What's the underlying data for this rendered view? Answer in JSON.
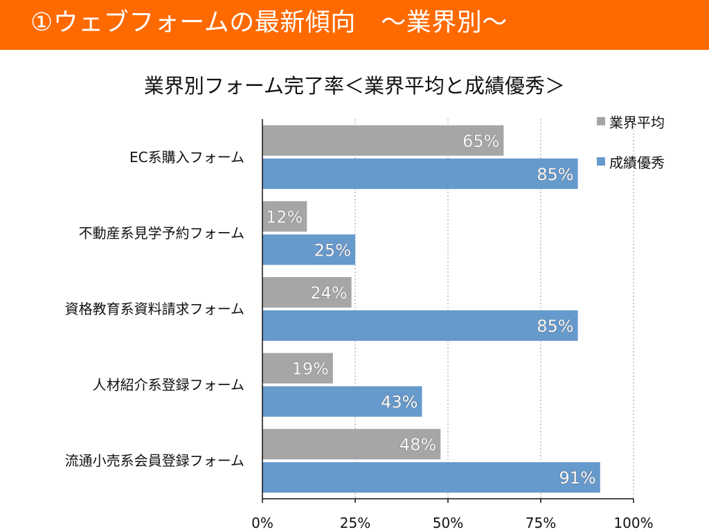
{
  "slide": {
    "title": "①ウェブフォームの最新傾向　～業界別～"
  },
  "chart_data": {
    "type": "bar",
    "orientation": "horizontal",
    "title": "業界別フォーム完了率＜業界平均と成績優秀＞",
    "categories": [
      "EC系購入フォーム",
      "不動産系見学予約フォーム",
      "資格教育系資料請求フォーム",
      "人材紹介系登録フォーム",
      "流通小売系会員登録フォーム"
    ],
    "series": [
      {
        "name": "業界平均",
        "color": "#a6a6a6",
        "values": [
          65,
          12,
          24,
          19,
          48
        ],
        "labels": [
          "65%",
          "12%",
          "24%",
          "19%",
          "48%"
        ]
      },
      {
        "name": "成績優秀",
        "color": "#6699cc",
        "values": [
          85,
          25,
          85,
          43,
          91
        ],
        "labels": [
          "85%",
          "25%",
          "85%",
          "43%",
          "91%"
        ]
      }
    ],
    "x_ticks": [
      "0%",
      "25%",
      "50%",
      "75%",
      "100%"
    ],
    "xlim": [
      0,
      100
    ],
    "grid": "vertical-dotted",
    "legend_position": "top-right"
  }
}
